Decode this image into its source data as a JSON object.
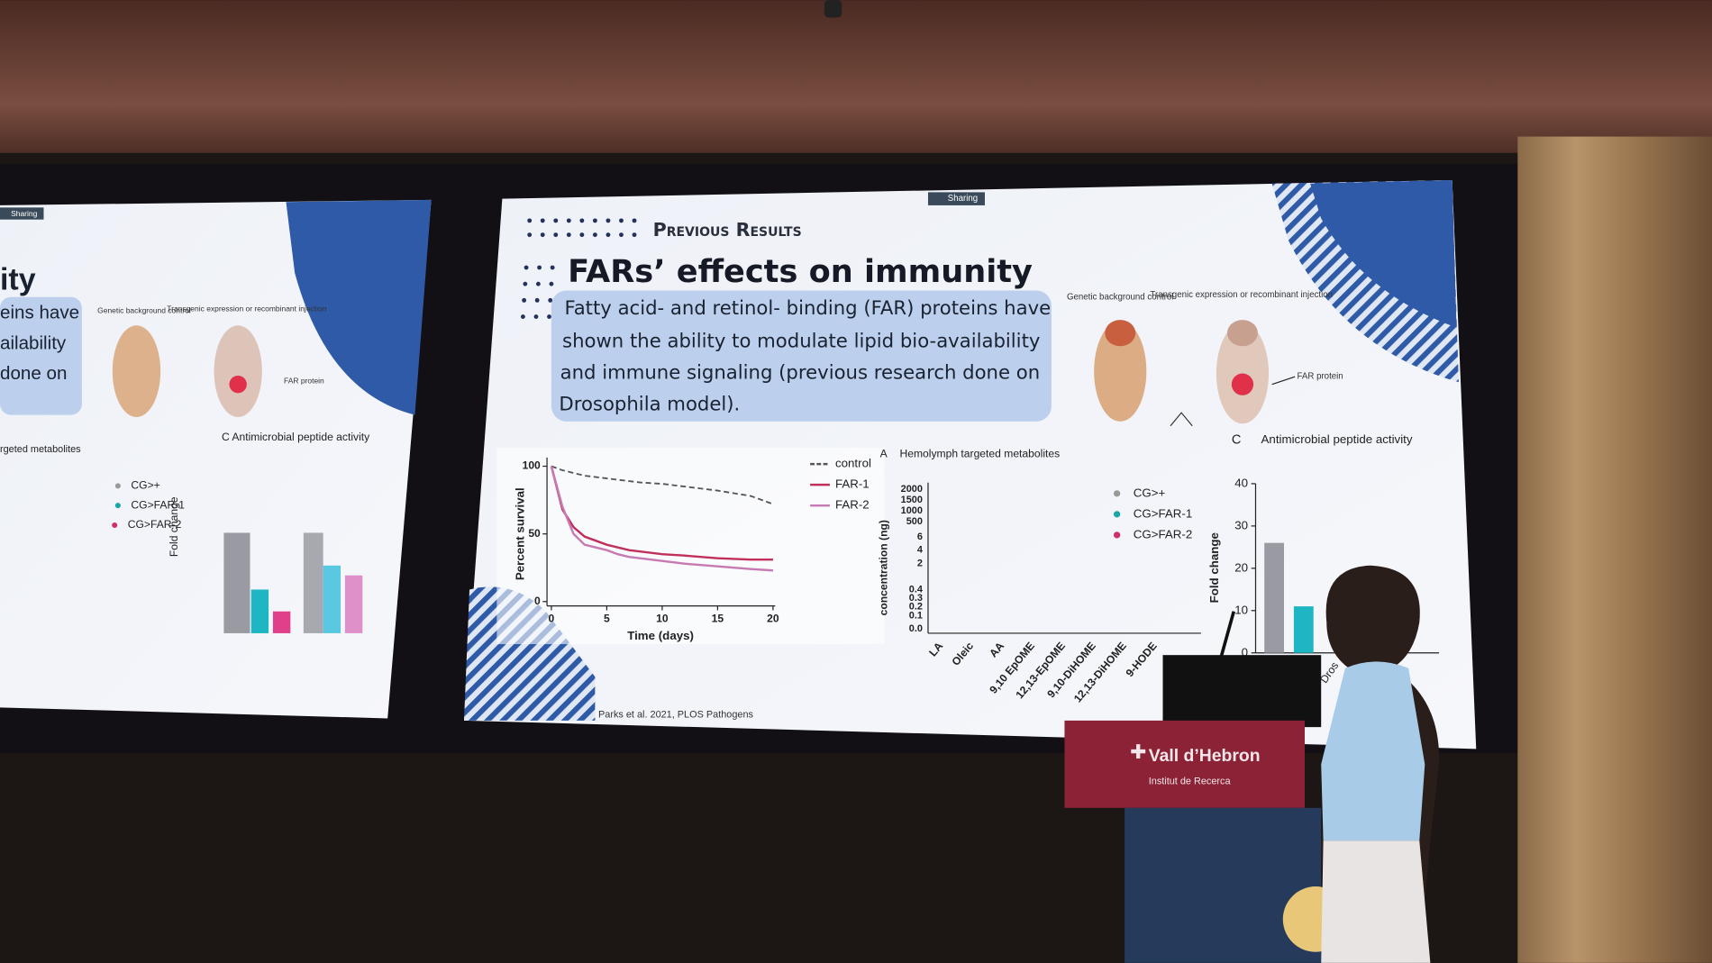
{
  "left_screen": {
    "badge": "Sharing",
    "lines": [
      "ity",
      "eins have",
      "ailability",
      "done on"
    ],
    "panel_a": "rgeted metabolites",
    "panel_c": "C  Antimicrobial peptide activity",
    "legend": [
      "CG>+",
      "CG>FAR-1",
      "CG>FAR-2"
    ],
    "fly_labels": [
      "Genetic background control",
      "Transgenic expression or recombinant injection",
      "FAR protein"
    ],
    "y_label": "Fold change"
  },
  "slide": {
    "badge": "Sharing",
    "kicker": "Previous Results",
    "title": "FARs’ effects on immunity",
    "paragraph": [
      "Fatty acid- and retinol- binding (FAR) proteins have",
      "shown the ability to modulate lipid bio-availability",
      "and immune signaling (previous research done on",
      "Drosophila model)."
    ],
    "citation": "Parks et al. 2021, PLOS Pathogens",
    "fly_labels": {
      "control": "Genetic background control",
      "transgenic": "Transgenic expression or recombinant injection",
      "protein": "FAR protein"
    }
  },
  "survival": {
    "x_label": "Time (days)",
    "y_label": "Percent survival",
    "xlim": [
      0,
      20
    ],
    "ylim": [
      0,
      100
    ],
    "xticks": [
      0,
      5,
      10,
      15,
      20
    ],
    "yticks": [
      0,
      50,
      100
    ],
    "x": [
      0,
      1,
      2,
      3,
      4,
      5,
      6,
      7,
      8,
      10,
      12,
      15,
      18,
      20
    ],
    "series": [
      {
        "name": "control",
        "color": "#555555",
        "values": [
          100,
          97,
          95,
          93,
          92,
          91,
          90,
          89,
          88,
          87,
          85,
          82,
          78,
          72
        ]
      },
      {
        "name": "FAR-1",
        "color": "#c0305a",
        "values": [
          100,
          68,
          55,
          48,
          45,
          42,
          40,
          38,
          37,
          35,
          34,
          32,
          31,
          31
        ]
      },
      {
        "name": "FAR-2",
        "color": "#c77ab2",
        "values": [
          100,
          70,
          50,
          42,
          40,
          38,
          35,
          33,
          32,
          30,
          28,
          26,
          24,
          23
        ]
      }
    ]
  },
  "metabolites": {
    "panel": "A",
    "title": "Hemolymph targeted metabolites",
    "y_label": "concentration (ng)",
    "tick_labels": [
      "2000",
      "1500",
      "1000",
      "500",
      "6",
      "4",
      "2",
      "0.4",
      "0.3",
      "0.2",
      "0.1",
      "0.0"
    ],
    "categories": [
      "LA",
      "Oleic",
      "AA",
      "9,10 EpOME",
      "12,13-EpOME",
      "9,10-DiHOME",
      "12,13-DiHOME",
      "9-HODE"
    ],
    "legend": [
      {
        "name": "CG>+",
        "color": "#999999"
      },
      {
        "name": "CG>FAR-1",
        "color": "#1aa6a6"
      },
      {
        "name": "CG>FAR-2",
        "color": "#d0306a"
      }
    ]
  },
  "peptide": {
    "panel": "C",
    "title": "Antimicrobial peptide activity",
    "y_label": "Fold change",
    "ylim": [
      0,
      40
    ],
    "yticks": [
      0,
      10,
      20,
      30,
      40
    ],
    "values": [
      26,
      11
    ],
    "colors": [
      "#9a9aa2",
      "#1fb6c4"
    ],
    "tail_label": "Dros"
  },
  "podium": {
    "logo": "Vall d’Hebron",
    "subtitle": "Institut de Recerca"
  }
}
